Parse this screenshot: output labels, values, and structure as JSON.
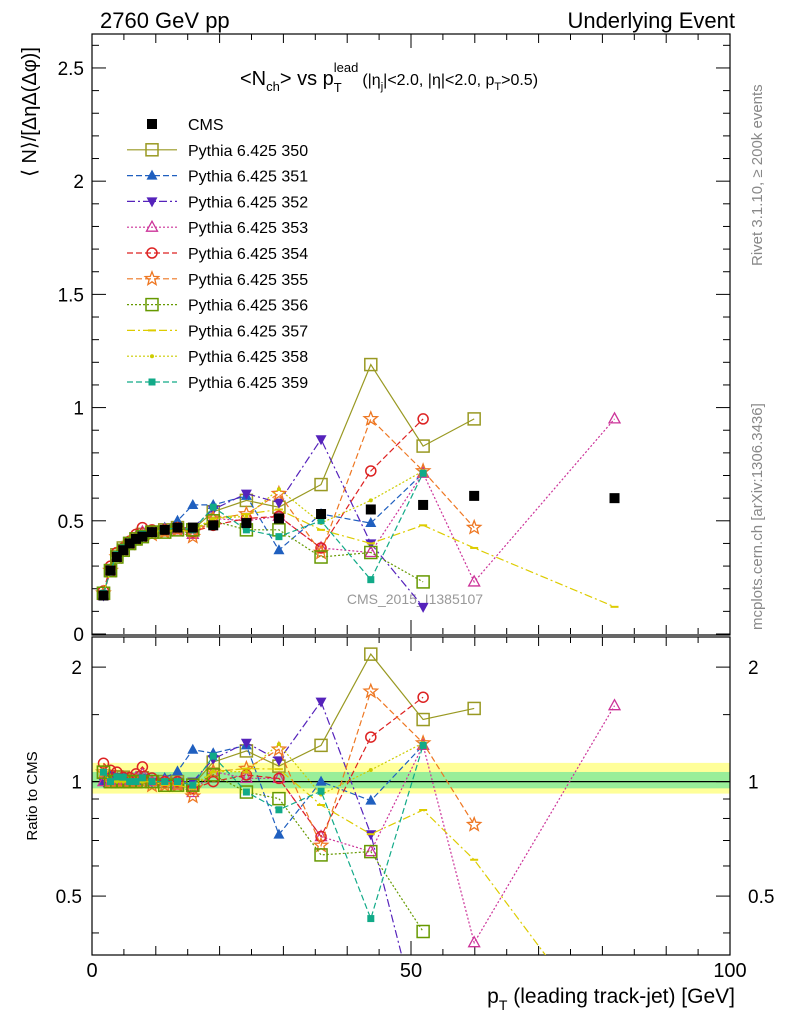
{
  "header": {
    "left": "2760 GeV pp",
    "right": "Underlying Event"
  },
  "title": {
    "prefix": "<N",
    "prefix_sub": "ch",
    "mid": "> vs p",
    "mid_sub": "T",
    "mid_sup": "lead",
    "cuts": "(|η",
    "cuts_sub": "j",
    "cuts_rest": "|<2.0, |η|<2.0, p",
    "cuts_sub2": "T",
    "cuts_end": ">0.5)"
  },
  "side": {
    "rivet": "Rivet 3.1.10, ≥ 200k events",
    "mcplots": "mcplots.cern.ch [arXiv:1306.3436]"
  },
  "watermark": "CMS_2015_I1385107",
  "axes": {
    "top_ylabel": "⟨ N⟩/[ΔηΔ(Δφ)]",
    "bottom_ylabel": "Ratio to CMS",
    "xlabel_p": "p",
    "xlabel_sub": "T",
    "xlabel_rest": " (leading track-jet) [GeV]",
    "top_ticks": [
      "0",
      "0.5",
      "1",
      "1.5",
      "2",
      "2.5"
    ],
    "ratio_ticks": [
      "0.5",
      "1",
      "2"
    ],
    "x_ticks": [
      "0",
      "50",
      "100"
    ]
  },
  "colors": {
    "cms": "#000000",
    "band_outer": "#ffff99",
    "band_inner": "#99ee99"
  },
  "chart_data": {
    "type": "scatter",
    "xlim": [
      0,
      100
    ],
    "ylim": [
      0,
      2.65
    ],
    "ratio_ylim": [
      0.35,
      2.4
    ],
    "ratio_scale": "log",
    "x": [
      1.8,
      2.9,
      3.9,
      4.9,
      5.9,
      6.9,
      7.9,
      9.4,
      11.4,
      13.4,
      15.8,
      19.0,
      24.2,
      29.3,
      35.9,
      43.7,
      51.9,
      59.9,
      81.9
    ],
    "series": [
      {
        "name": "CMS",
        "color": "#000000",
        "marker": "square-filled",
        "line": "none",
        "values": [
          0.17,
          0.28,
          0.34,
          0.37,
          0.4,
          0.42,
          0.43,
          0.45,
          0.46,
          0.47,
          0.47,
          0.48,
          0.49,
          0.51,
          0.53,
          0.55,
          0.57,
          0.61,
          0.6
        ]
      },
      {
        "name": "Pythia 6.425 350",
        "color": "#999922",
        "marker": "square-open",
        "line": "solid",
        "values": [
          0.18,
          0.28,
          0.35,
          0.38,
          0.4,
          0.42,
          0.44,
          0.45,
          0.46,
          0.47,
          0.46,
          0.54,
          0.59,
          0.56,
          0.66,
          1.19,
          0.83,
          0.95,
          null
        ]
      },
      {
        "name": "Pythia 6.425 351",
        "color": "#1f5fbf",
        "marker": "triangle-up-filled",
        "line": "dashed",
        "values": [
          0.17,
          0.29,
          0.34,
          0.38,
          0.4,
          0.42,
          0.44,
          0.45,
          0.47,
          0.5,
          0.57,
          0.57,
          0.61,
          0.37,
          0.53,
          0.49,
          0.71,
          null,
          null
        ]
      },
      {
        "name": "Pythia 6.425 352",
        "color": "#5522bb",
        "marker": "triangle-down-filled",
        "line": "dashdot",
        "values": [
          0.17,
          0.29,
          0.35,
          0.38,
          0.4,
          0.42,
          0.44,
          0.45,
          0.46,
          0.47,
          0.47,
          0.55,
          0.62,
          0.58,
          0.86,
          0.4,
          0.12,
          null,
          null
        ]
      },
      {
        "name": "Pythia 6.425 353",
        "color": "#cc3399",
        "marker": "triangle-up-open",
        "line": "dotted",
        "values": [
          0.17,
          0.28,
          0.34,
          0.37,
          0.4,
          0.43,
          0.45,
          0.45,
          0.46,
          0.46,
          0.44,
          0.51,
          0.5,
          0.52,
          0.38,
          0.36,
          0.71,
          0.23,
          0.95
        ]
      },
      {
        "name": "Pythia 6.425 354",
        "color": "#dd2222",
        "marker": "circle-open",
        "line": "dashed",
        "values": [
          0.19,
          0.3,
          0.36,
          0.38,
          0.41,
          0.44,
          0.47,
          0.46,
          0.46,
          0.47,
          0.45,
          0.48,
          0.51,
          0.52,
          0.38,
          0.72,
          0.95,
          null,
          null
        ]
      },
      {
        "name": "Pythia 6.425 355",
        "color": "#ee7722",
        "marker": "star-open",
        "line": "dashed",
        "values": [
          0.18,
          0.28,
          0.34,
          0.37,
          0.4,
          0.42,
          0.43,
          0.44,
          0.45,
          0.46,
          0.43,
          0.51,
          0.53,
          0.62,
          0.36,
          0.95,
          0.72,
          0.47,
          null
        ]
      },
      {
        "name": "Pythia 6.425 356",
        "color": "#669900",
        "marker": "square-open",
        "line": "dotted",
        "values": [
          0.18,
          0.28,
          0.34,
          0.37,
          0.4,
          0.42,
          0.43,
          0.45,
          0.45,
          0.46,
          0.46,
          0.5,
          0.46,
          0.46,
          0.34,
          0.36,
          0.23,
          null,
          null
        ]
      },
      {
        "name": "Pythia 6.425 357",
        "color": "#ddcc00",
        "marker": "dash",
        "line": "dashdot",
        "values": [
          0.18,
          0.28,
          0.34,
          0.37,
          0.4,
          0.42,
          0.43,
          0.45,
          0.45,
          0.46,
          0.45,
          0.51,
          0.53,
          0.55,
          0.46,
          0.4,
          0.48,
          0.38,
          0.12
        ]
      },
      {
        "name": "Pythia 6.425 358",
        "color": "#cccc00",
        "marker": "dot",
        "line": "dotted",
        "values": [
          0.18,
          0.28,
          0.34,
          0.37,
          0.4,
          0.42,
          0.43,
          0.45,
          0.46,
          0.47,
          0.46,
          0.51,
          0.52,
          0.64,
          0.49,
          0.59,
          0.72,
          null,
          null
        ]
      },
      {
        "name": "Pythia 6.425 359",
        "color": "#11aa88",
        "marker": "square-filled-small",
        "line": "dashed",
        "values": [
          0.18,
          0.28,
          0.35,
          0.38,
          0.4,
          0.42,
          0.44,
          0.45,
          0.46,
          0.47,
          0.46,
          0.56,
          0.46,
          0.43,
          0.5,
          0.24,
          0.71,
          null,
          null
        ]
      }
    ]
  }
}
